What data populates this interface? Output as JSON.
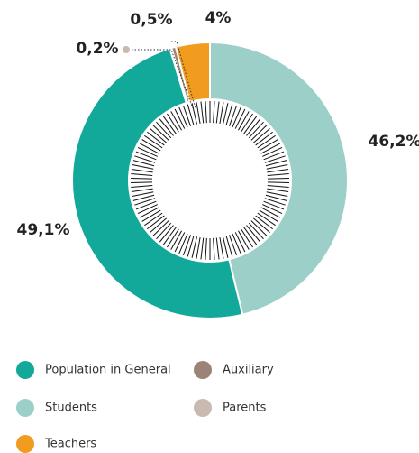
{
  "chart_data": {
    "type": "donut",
    "categories": [
      "Students",
      "Population in General",
      "Parents",
      "Auxiliary",
      "Teachers"
    ],
    "values": [
      46.2,
      49.1,
      0.2,
      0.5,
      4
    ],
    "value_labels": [
      "46,2%",
      "49,1%",
      "0,2%",
      "0,5%",
      "4%"
    ],
    "colors": [
      "#9ccfc8",
      "#12a89a",
      "#c8bab1",
      "#9b8477",
      "#f29c1f"
    ]
  }
}
